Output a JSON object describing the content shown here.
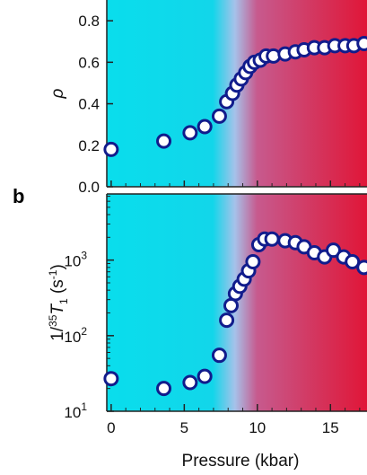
{
  "panel_b_label": "b",
  "xaxis": {
    "label": "Pressure (kbar)",
    "ticks": [
      "0",
      "5",
      "10",
      "15"
    ],
    "tick_values": [
      0,
      5,
      10,
      15
    ]
  },
  "colors": {
    "low_pressure": "#00e5ee",
    "high_pressure": "#e01638",
    "marker_edge": "#111c8c",
    "marker_fill": "#ffffff"
  },
  "chart_data": [
    {
      "type": "scatter",
      "ylabel_parts": {
        "main": "ρ"
      },
      "xlim": [
        -0.3,
        17.5
      ],
      "ylim": [
        0.0,
        0.9
      ],
      "ytick_values": [
        0.0,
        0.2,
        0.4,
        0.6,
        0.8
      ],
      "yticks": [
        "0.0",
        "0.2",
        "0.4",
        "0.6",
        "0.8"
      ],
      "points": [
        {
          "x": 0.0,
          "y": 0.18
        },
        {
          "x": 3.6,
          "y": 0.22
        },
        {
          "x": 5.4,
          "y": 0.26
        },
        {
          "x": 6.4,
          "y": 0.29
        },
        {
          "x": 7.4,
          "y": 0.34
        },
        {
          "x": 7.9,
          "y": 0.41
        },
        {
          "x": 8.3,
          "y": 0.45
        },
        {
          "x": 8.6,
          "y": 0.49
        },
        {
          "x": 8.9,
          "y": 0.52
        },
        {
          "x": 9.2,
          "y": 0.55
        },
        {
          "x": 9.5,
          "y": 0.58
        },
        {
          "x": 9.8,
          "y": 0.6
        },
        {
          "x": 10.2,
          "y": 0.61
        },
        {
          "x": 10.6,
          "y": 0.63
        },
        {
          "x": 11.1,
          "y": 0.63
        },
        {
          "x": 11.9,
          "y": 0.64
        },
        {
          "x": 12.6,
          "y": 0.65
        },
        {
          "x": 13.2,
          "y": 0.66
        },
        {
          "x": 13.9,
          "y": 0.67
        },
        {
          "x": 14.6,
          "y": 0.67
        },
        {
          "x": 15.3,
          "y": 0.68
        },
        {
          "x": 16.0,
          "y": 0.68
        },
        {
          "x": 16.6,
          "y": 0.68
        },
        {
          "x": 17.3,
          "y": 0.69
        }
      ]
    },
    {
      "type": "scatter",
      "yscale": "log",
      "ylabel_parts": {
        "pre": "1/",
        "sup": "35",
        "main": "T",
        "sub": "1",
        "unit": " (s",
        "unit_sup": "-1",
        "close": ")"
      },
      "xlim": [
        -0.3,
        17.5
      ],
      "ylim": [
        10,
        7500
      ],
      "ytick_values": [
        10,
        100,
        1000
      ],
      "ytick_base": "10",
      "ytick_exps": [
        "1",
        "2",
        "3"
      ],
      "points": [
        {
          "x": 0.0,
          "y": 27
        },
        {
          "x": 3.6,
          "y": 20
        },
        {
          "x": 5.4,
          "y": 24
        },
        {
          "x": 6.4,
          "y": 29
        },
        {
          "x": 7.4,
          "y": 55
        },
        {
          "x": 7.9,
          "y": 160
        },
        {
          "x": 8.2,
          "y": 250
        },
        {
          "x": 8.5,
          "y": 360
        },
        {
          "x": 8.8,
          "y": 450
        },
        {
          "x": 9.1,
          "y": 560
        },
        {
          "x": 9.4,
          "y": 720
        },
        {
          "x": 9.7,
          "y": 950
        },
        {
          "x": 10.1,
          "y": 1600
        },
        {
          "x": 10.5,
          "y": 1900
        },
        {
          "x": 11.0,
          "y": 1900
        },
        {
          "x": 11.9,
          "y": 1800
        },
        {
          "x": 12.6,
          "y": 1700
        },
        {
          "x": 13.2,
          "y": 1500
        },
        {
          "x": 13.9,
          "y": 1250
        },
        {
          "x": 14.6,
          "y": 1100
        },
        {
          "x": 15.2,
          "y": 1350
        },
        {
          "x": 15.9,
          "y": 1100
        },
        {
          "x": 16.5,
          "y": 950
        },
        {
          "x": 17.3,
          "y": 800
        }
      ]
    }
  ]
}
